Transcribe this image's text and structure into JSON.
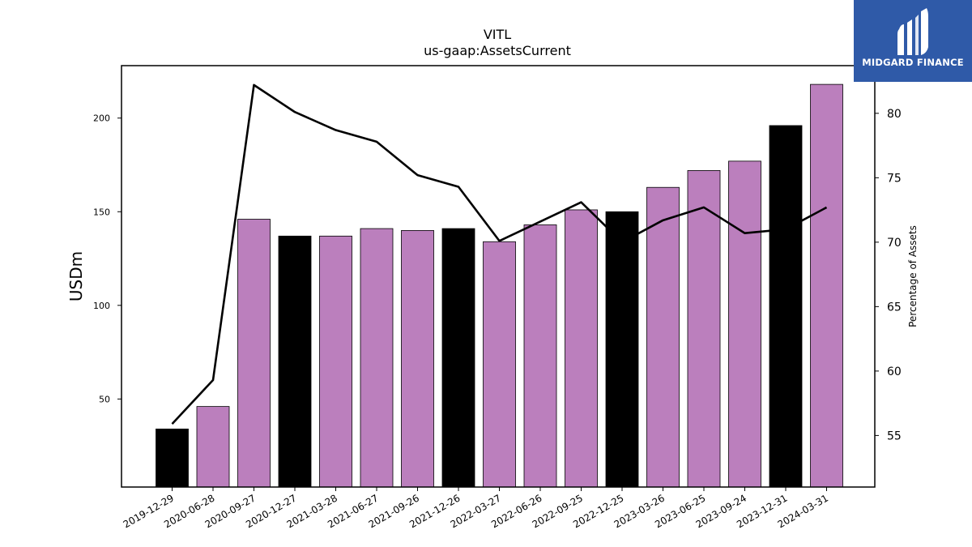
{
  "brand": {
    "name": "MIDGARD FINANCE",
    "bg_color": "#2f5aa8"
  },
  "chart_data": {
    "type": "bar",
    "title": "VITL",
    "subtitle": "us-gaap:AssetsCurrent",
    "ylabel": "USDm",
    "ylabel_right": "Percentage of Assets",
    "categories": [
      "2019-12-29",
      "2020-06-28",
      "2020-09-27",
      "2020-12-27",
      "2021-03-28",
      "2021-06-27",
      "2021-09-26",
      "2021-12-26",
      "2022-03-27",
      "2022-06-26",
      "2022-09-25",
      "2022-12-25",
      "2023-03-26",
      "2023-06-25",
      "2023-09-24",
      "2023-12-31",
      "2024-03-31"
    ],
    "values": [
      34,
      46,
      146,
      137,
      137,
      141,
      140,
      141,
      134,
      143,
      151,
      150,
      163,
      172,
      177,
      196,
      218
    ],
    "bar_colors": [
      "#000000",
      "#bb7fbd",
      "#bb7fbd",
      "#000000",
      "#bb7fbd",
      "#bb7fbd",
      "#bb7fbd",
      "#000000",
      "#bb7fbd",
      "#bb7fbd",
      "#bb7fbd",
      "#000000",
      "#bb7fbd",
      "#bb7fbd",
      "#bb7fbd",
      "#000000",
      "#bb7fbd"
    ],
    "line_values": [
      55.9,
      59.3,
      82.2,
      80.1,
      78.7,
      77.8,
      75.2,
      74.3,
      70.1,
      71.6,
      73.1,
      70.0,
      71.7,
      72.7,
      70.7,
      71.0,
      72.7
    ],
    "line_color": "#000000",
    "ylim": [
      3,
      228
    ],
    "ylim_right": [
      51.0,
      83.7
    ],
    "yticks": [
      50,
      100,
      150,
      200
    ],
    "yticks_right": [
      55,
      60,
      65,
      70,
      75,
      80
    ]
  }
}
